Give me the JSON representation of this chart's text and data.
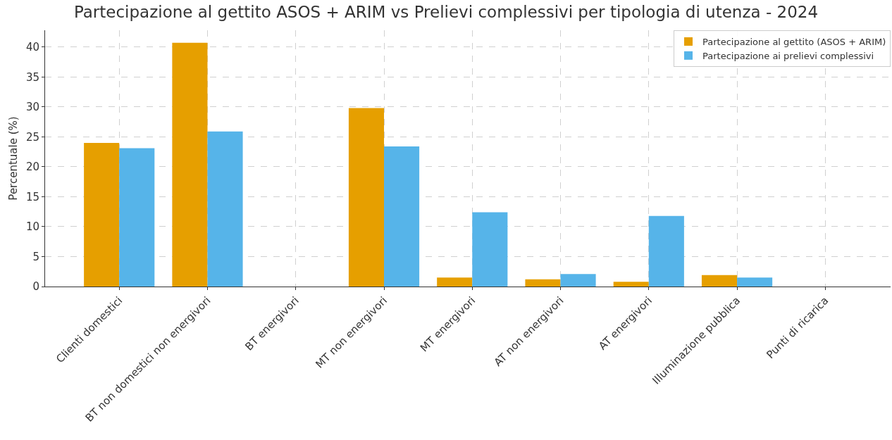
{
  "chart_data": {
    "type": "bar",
    "title": "Partecipazione al gettito ASOS + ARIM vs Prelievi complessivi per tipologia di utenza - 2024",
    "ylabel": "Percentuale (%)",
    "categories": [
      "Clienti domestici",
      "BT non domestici non energivori",
      "BT energivori",
      "MT non energivori",
      "MT energivori",
      "AT non energivori",
      "AT energivori",
      "Illuminazione pubblica",
      "Punti di ricarica"
    ],
    "series": [
      {
        "name": "Partecipazione al gettito (ASOS + ARIM)",
        "color": "#e69f00",
        "values": [
          24.0,
          40.7,
          0,
          29.8,
          1.5,
          1.2,
          0.8,
          1.9,
          0
        ]
      },
      {
        "name": "Partecipazione ai prelievi complessivi",
        "color": "#56b4e9",
        "values": [
          23.1,
          25.9,
          0,
          23.4,
          12.4,
          2.1,
          11.8,
          1.5,
          0
        ]
      }
    ],
    "ylim": [
      0,
      42.8
    ],
    "yticks": [
      0,
      5,
      10,
      15,
      20,
      25,
      30,
      35,
      40
    ],
    "grid": true,
    "legend": "top right"
  }
}
